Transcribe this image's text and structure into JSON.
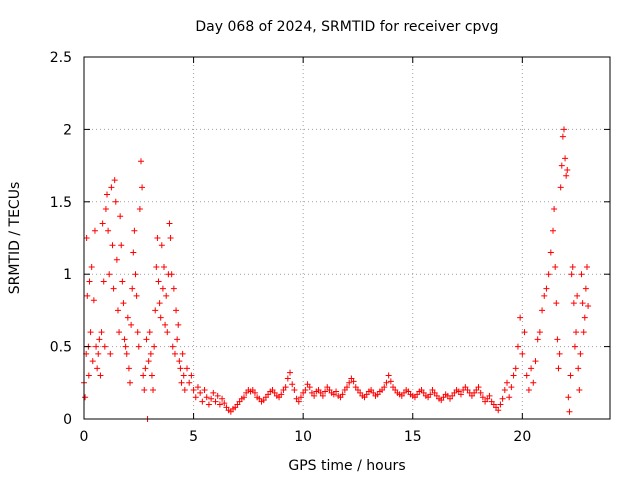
{
  "chart_data": {
    "type": "scatter",
    "title": "Day 068 of 2024, SRMTID for receiver cpvg",
    "xlabel": "GPS time / hours",
    "ylabel": "SRMTID / TECUs",
    "xlim": [
      0,
      24
    ],
    "ylim": [
      0,
      2.5
    ],
    "xticks": [
      0,
      5,
      10,
      15,
      20
    ],
    "xtick_labels": [
      "0",
      "5",
      "10",
      "15",
      "20"
    ],
    "yticks": [
      0,
      0.5,
      1,
      1.5,
      2,
      2.5
    ],
    "ytick_labels": [
      "0",
      "0.5",
      "1",
      "1.5",
      "2",
      "2.5"
    ],
    "grid": true,
    "marker": "+",
    "color": "#ff0000",
    "series": [
      {
        "name": "SRMTID",
        "points": [
          [
            0.0,
            0.25
          ],
          [
            0.05,
            0.15
          ],
          [
            0.1,
            0.45
          ],
          [
            0.12,
            1.25
          ],
          [
            0.15,
            0.85
          ],
          [
            0.2,
            0.5
          ],
          [
            0.22,
            0.3
          ],
          [
            0.25,
            0.95
          ],
          [
            0.3,
            0.6
          ],
          [
            0.35,
            1.05
          ],
          [
            0.4,
            0.4
          ],
          [
            0.45,
            0.82
          ],
          [
            0.5,
            1.3
          ],
          [
            0.55,
            0.5
          ],
          [
            0.6,
            0.35
          ],
          [
            0.65,
            0.45
          ],
          [
            0.7,
            0.55
          ],
          [
            0.75,
            0.3
          ],
          [
            0.8,
            0.6
          ],
          [
            0.85,
            1.35
          ],
          [
            0.9,
            0.95
          ],
          [
            0.95,
            0.5
          ],
          [
            1.0,
            1.45
          ],
          [
            1.05,
            1.55
          ],
          [
            1.1,
            1.3
          ],
          [
            1.15,
            1.0
          ],
          [
            1.2,
            0.45
          ],
          [
            1.25,
            1.6
          ],
          [
            1.3,
            1.2
          ],
          [
            1.35,
            0.9
          ],
          [
            1.4,
            1.65
          ],
          [
            1.45,
            1.5
          ],
          [
            1.5,
            1.1
          ],
          [
            1.55,
            0.75
          ],
          [
            1.6,
            0.6
          ],
          [
            1.65,
            1.4
          ],
          [
            1.7,
            1.2
          ],
          [
            1.75,
            0.95
          ],
          [
            1.8,
            0.8
          ],
          [
            1.85,
            0.55
          ],
          [
            1.9,
            0.5
          ],
          [
            1.95,
            0.45
          ],
          [
            2.0,
            0.7
          ],
          [
            2.05,
            0.35
          ],
          [
            2.1,
            0.25
          ],
          [
            2.15,
            0.65
          ],
          [
            2.2,
            0.9
          ],
          [
            2.25,
            1.15
          ],
          [
            2.3,
            1.3
          ],
          [
            2.35,
            1.0
          ],
          [
            2.4,
            0.85
          ],
          [
            2.45,
            0.6
          ],
          [
            2.5,
            0.5
          ],
          [
            2.55,
            1.45
          ],
          [
            2.6,
            1.78
          ],
          [
            2.65,
            1.6
          ],
          [
            2.7,
            0.3
          ],
          [
            2.75,
            0.2
          ],
          [
            2.8,
            0.35
          ],
          [
            2.85,
            0.55
          ],
          [
            2.9,
            0.0
          ],
          [
            2.95,
            0.4
          ],
          [
            3.0,
            0.6
          ],
          [
            3.05,
            0.45
          ],
          [
            3.1,
            0.3
          ],
          [
            3.15,
            0.2
          ],
          [
            3.2,
            0.5
          ],
          [
            3.25,
            0.75
          ],
          [
            3.3,
            1.05
          ],
          [
            3.35,
            1.25
          ],
          [
            3.4,
            0.95
          ],
          [
            3.45,
            0.8
          ],
          [
            3.5,
            0.7
          ],
          [
            3.55,
            1.2
          ],
          [
            3.6,
            0.9
          ],
          [
            3.65,
            1.05
          ],
          [
            3.7,
            0.65
          ],
          [
            3.75,
            0.85
          ],
          [
            3.8,
            0.6
          ],
          [
            3.85,
            1.0
          ],
          [
            3.9,
            1.35
          ],
          [
            3.95,
            1.25
          ],
          [
            4.0,
            1.0
          ],
          [
            4.05,
            0.5
          ],
          [
            4.1,
            0.9
          ],
          [
            4.15,
            0.45
          ],
          [
            4.2,
            0.75
          ],
          [
            4.25,
            0.55
          ],
          [
            4.3,
            0.65
          ],
          [
            4.35,
            0.4
          ],
          [
            4.4,
            0.35
          ],
          [
            4.45,
            0.25
          ],
          [
            4.5,
            0.45
          ],
          [
            4.55,
            0.3
          ],
          [
            4.6,
            0.2
          ],
          [
            4.7,
            0.35
          ],
          [
            4.8,
            0.25
          ],
          [
            4.9,
            0.3
          ],
          [
            5.0,
            0.2
          ],
          [
            5.1,
            0.15
          ],
          [
            5.2,
            0.22
          ],
          [
            5.3,
            0.18
          ],
          [
            5.4,
            0.12
          ],
          [
            5.5,
            0.2
          ],
          [
            5.6,
            0.15
          ],
          [
            5.7,
            0.1
          ],
          [
            5.8,
            0.14
          ],
          [
            5.9,
            0.18
          ],
          [
            6.0,
            0.12
          ],
          [
            6.1,
            0.16
          ],
          [
            6.2,
            0.1
          ],
          [
            6.3,
            0.14
          ],
          [
            6.4,
            0.11
          ],
          [
            6.5,
            0.08
          ],
          [
            6.6,
            0.06
          ],
          [
            6.7,
            0.05
          ],
          [
            6.8,
            0.07
          ],
          [
            6.9,
            0.08
          ],
          [
            7.0,
            0.1
          ],
          [
            7.1,
            0.12
          ],
          [
            7.2,
            0.14
          ],
          [
            7.3,
            0.15
          ],
          [
            7.4,
            0.18
          ],
          [
            7.5,
            0.2
          ],
          [
            7.6,
            0.19
          ],
          [
            7.7,
            0.2
          ],
          [
            7.8,
            0.18
          ],
          [
            7.9,
            0.15
          ],
          [
            8.0,
            0.14
          ],
          [
            8.1,
            0.12
          ],
          [
            8.2,
            0.13
          ],
          [
            8.3,
            0.15
          ],
          [
            8.4,
            0.17
          ],
          [
            8.5,
            0.19
          ],
          [
            8.6,
            0.2
          ],
          [
            8.7,
            0.18
          ],
          [
            8.8,
            0.16
          ],
          [
            8.9,
            0.15
          ],
          [
            9.0,
            0.17
          ],
          [
            9.1,
            0.2
          ],
          [
            9.2,
            0.22
          ],
          [
            9.3,
            0.28
          ],
          [
            9.4,
            0.32
          ],
          [
            9.5,
            0.24
          ],
          [
            9.6,
            0.2
          ],
          [
            9.7,
            0.14
          ],
          [
            9.8,
            0.12
          ],
          [
            9.9,
            0.15
          ],
          [
            10.0,
            0.18
          ],
          [
            10.1,
            0.2
          ],
          [
            10.2,
            0.24
          ],
          [
            10.3,
            0.22
          ],
          [
            10.4,
            0.18
          ],
          [
            10.5,
            0.16
          ],
          [
            10.6,
            0.19
          ],
          [
            10.7,
            0.2
          ],
          [
            10.8,
            0.18
          ],
          [
            10.9,
            0.16
          ],
          [
            11.0,
            0.19
          ],
          [
            11.1,
            0.22
          ],
          [
            11.2,
            0.2
          ],
          [
            11.3,
            0.18
          ],
          [
            11.4,
            0.17
          ],
          [
            11.5,
            0.19
          ],
          [
            11.6,
            0.16
          ],
          [
            11.7,
            0.15
          ],
          [
            11.8,
            0.17
          ],
          [
            11.9,
            0.2
          ],
          [
            12.0,
            0.22
          ],
          [
            12.1,
            0.25
          ],
          [
            12.2,
            0.28
          ],
          [
            12.3,
            0.26
          ],
          [
            12.4,
            0.22
          ],
          [
            12.5,
            0.2
          ],
          [
            12.6,
            0.18
          ],
          [
            12.7,
            0.16
          ],
          [
            12.8,
            0.15
          ],
          [
            12.9,
            0.17
          ],
          [
            13.0,
            0.19
          ],
          [
            13.1,
            0.2
          ],
          [
            13.2,
            0.18
          ],
          [
            13.3,
            0.16
          ],
          [
            13.4,
            0.17
          ],
          [
            13.5,
            0.19
          ],
          [
            13.6,
            0.2
          ],
          [
            13.7,
            0.22
          ],
          [
            13.8,
            0.25
          ],
          [
            13.9,
            0.3
          ],
          [
            14.0,
            0.26
          ],
          [
            14.1,
            0.22
          ],
          [
            14.2,
            0.2
          ],
          [
            14.3,
            0.18
          ],
          [
            14.4,
            0.17
          ],
          [
            14.5,
            0.16
          ],
          [
            14.6,
            0.18
          ],
          [
            14.7,
            0.2
          ],
          [
            14.8,
            0.19
          ],
          [
            14.9,
            0.17
          ],
          [
            15.0,
            0.16
          ],
          [
            15.1,
            0.15
          ],
          [
            15.2,
            0.17
          ],
          [
            15.3,
            0.19
          ],
          [
            15.4,
            0.2
          ],
          [
            15.5,
            0.18
          ],
          [
            15.6,
            0.16
          ],
          [
            15.7,
            0.15
          ],
          [
            15.8,
            0.17
          ],
          [
            15.9,
            0.2
          ],
          [
            16.0,
            0.18
          ],
          [
            16.1,
            0.16
          ],
          [
            16.2,
            0.14
          ],
          [
            16.3,
            0.13
          ],
          [
            16.4,
            0.15
          ],
          [
            16.5,
            0.17
          ],
          [
            16.6,
            0.16
          ],
          [
            16.7,
            0.14
          ],
          [
            16.8,
            0.16
          ],
          [
            16.9,
            0.18
          ],
          [
            17.0,
            0.2
          ],
          [
            17.1,
            0.19
          ],
          [
            17.2,
            0.17
          ],
          [
            17.3,
            0.2
          ],
          [
            17.4,
            0.22
          ],
          [
            17.5,
            0.2
          ],
          [
            17.6,
            0.18
          ],
          [
            17.7,
            0.16
          ],
          [
            17.8,
            0.18
          ],
          [
            17.9,
            0.2
          ],
          [
            18.0,
            0.22
          ],
          [
            18.1,
            0.18
          ],
          [
            18.2,
            0.15
          ],
          [
            18.3,
            0.12
          ],
          [
            18.4,
            0.14
          ],
          [
            18.5,
            0.16
          ],
          [
            18.6,
            0.12
          ],
          [
            18.7,
            0.1
          ],
          [
            18.8,
            0.08
          ],
          [
            18.9,
            0.06
          ],
          [
            19.0,
            0.1
          ],
          [
            19.1,
            0.14
          ],
          [
            19.2,
            0.2
          ],
          [
            19.3,
            0.25
          ],
          [
            19.4,
            0.15
          ],
          [
            19.5,
            0.22
          ],
          [
            19.6,
            0.3
          ],
          [
            19.7,
            0.35
          ],
          [
            19.8,
            0.5
          ],
          [
            19.9,
            0.7
          ],
          [
            20.0,
            0.45
          ],
          [
            20.1,
            0.6
          ],
          [
            20.2,
            0.3
          ],
          [
            20.3,
            0.2
          ],
          [
            20.4,
            0.35
          ],
          [
            20.5,
            0.25
          ],
          [
            20.6,
            0.4
          ],
          [
            20.7,
            0.55
          ],
          [
            20.8,
            0.6
          ],
          [
            20.9,
            0.75
          ],
          [
            21.0,
            0.85
          ],
          [
            21.1,
            0.9
          ],
          [
            21.2,
            1.0
          ],
          [
            21.3,
            1.15
          ],
          [
            21.4,
            1.3
          ],
          [
            21.45,
            1.45
          ],
          [
            21.5,
            1.05
          ],
          [
            21.55,
            0.8
          ],
          [
            21.6,
            0.55
          ],
          [
            21.65,
            0.35
          ],
          [
            21.7,
            0.45
          ],
          [
            21.75,
            1.6
          ],
          [
            21.8,
            1.75
          ],
          [
            21.85,
            1.95
          ],
          [
            21.9,
            2.0
          ],
          [
            21.95,
            1.8
          ],
          [
            22.0,
            1.68
          ],
          [
            22.05,
            1.72
          ],
          [
            22.1,
            0.15
          ],
          [
            22.15,
            0.05
          ],
          [
            22.2,
            0.3
          ],
          [
            22.25,
            1.0
          ],
          [
            22.3,
            1.05
          ],
          [
            22.35,
            0.8
          ],
          [
            22.4,
            0.5
          ],
          [
            22.45,
            0.6
          ],
          [
            22.5,
            0.85
          ],
          [
            22.55,
            0.35
          ],
          [
            22.6,
            0.2
          ],
          [
            22.65,
            0.45
          ],
          [
            22.7,
            1.0
          ],
          [
            22.75,
            0.8
          ],
          [
            22.8,
            0.6
          ],
          [
            22.85,
            0.7
          ],
          [
            22.9,
            0.9
          ],
          [
            22.95,
            1.05
          ],
          [
            23.0,
            0.78
          ]
        ]
      }
    ]
  }
}
